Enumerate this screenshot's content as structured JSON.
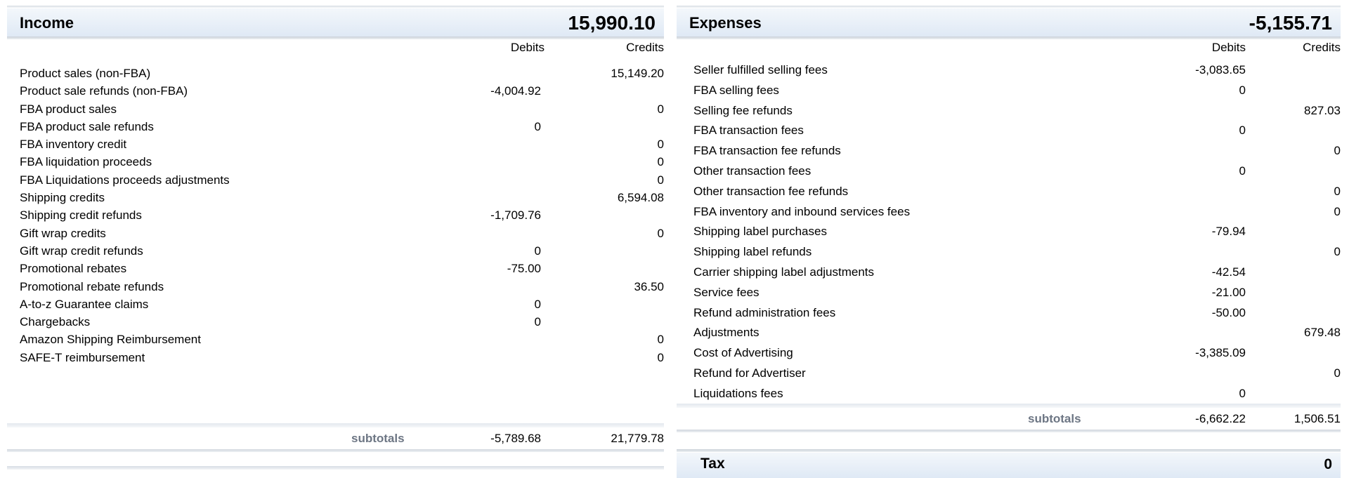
{
  "income": {
    "title": "Income",
    "total": "15,990.10",
    "col_debits": "Debits",
    "col_credits": "Credits",
    "rows": [
      {
        "label": "Product sales (non-FBA)",
        "debit": "",
        "credit": "15,149.20"
      },
      {
        "label": "Product sale refunds (non-FBA)",
        "debit": "-4,004.92",
        "credit": ""
      },
      {
        "label": "FBA product sales",
        "debit": "",
        "credit": "0"
      },
      {
        "label": "FBA product sale refunds",
        "debit": "0",
        "credit": ""
      },
      {
        "label": "FBA inventory credit",
        "debit": "",
        "credit": "0"
      },
      {
        "label": "FBA liquidation proceeds",
        "debit": "",
        "credit": "0"
      },
      {
        "label": "FBA Liquidations proceeds adjustments",
        "debit": "",
        "credit": "0"
      },
      {
        "label": "Shipping credits",
        "debit": "",
        "credit": "6,594.08"
      },
      {
        "label": "Shipping credit refunds",
        "debit": "-1,709.76",
        "credit": ""
      },
      {
        "label": "Gift wrap credits",
        "debit": "",
        "credit": "0"
      },
      {
        "label": "Gift wrap credit refunds",
        "debit": "0",
        "credit": ""
      },
      {
        "label": "Promotional rebates",
        "debit": "-75.00",
        "credit": ""
      },
      {
        "label": "Promotional rebate refunds",
        "debit": "",
        "credit": "36.50"
      },
      {
        "label": "A-to-z Guarantee claims",
        "debit": "0",
        "credit": ""
      },
      {
        "label": "Chargebacks",
        "debit": "0",
        "credit": ""
      },
      {
        "label": "Amazon Shipping Reimbursement",
        "debit": "",
        "credit": "0"
      },
      {
        "label": "SAFE-T reimbursement",
        "debit": "",
        "credit": "0"
      }
    ],
    "subtotals_label": "subtotals",
    "subtotal_debits": "-5,789.68",
    "subtotal_credits": "21,779.78"
  },
  "expenses": {
    "title": "Expenses",
    "total": "-5,155.71",
    "col_debits": "Debits",
    "col_credits": "Credits",
    "rows": [
      {
        "label": "Seller fulfilled selling fees",
        "debit": "-3,083.65",
        "credit": ""
      },
      {
        "label": "FBA selling fees",
        "debit": "0",
        "credit": ""
      },
      {
        "label": "Selling fee refunds",
        "debit": "",
        "credit": "827.03"
      },
      {
        "label": "FBA transaction fees",
        "debit": "0",
        "credit": ""
      },
      {
        "label": "FBA transaction fee refunds",
        "debit": "",
        "credit": "0"
      },
      {
        "label": "Other transaction fees",
        "debit": "0",
        "credit": ""
      },
      {
        "label": "Other transaction fee refunds",
        "debit": "",
        "credit": "0"
      },
      {
        "label": "FBA inventory and inbound services fees",
        "debit": "",
        "credit": "0"
      },
      {
        "label": "Shipping label purchases",
        "debit": "-79.94",
        "credit": ""
      },
      {
        "label": "Shipping label refunds",
        "debit": "",
        "credit": "0"
      },
      {
        "label": "Carrier shipping label adjustments",
        "debit": "-42.54",
        "credit": ""
      },
      {
        "label": "Service fees",
        "debit": "-21.00",
        "credit": ""
      },
      {
        "label": "Refund administration fees",
        "debit": "-50.00",
        "credit": ""
      },
      {
        "label": "Adjustments",
        "debit": "",
        "credit": "679.48"
      },
      {
        "label": "Cost of Advertising",
        "debit": "-3,385.09",
        "credit": ""
      },
      {
        "label": "Refund for Advertiser",
        "debit": "",
        "credit": "0"
      },
      {
        "label": "Liquidations fees",
        "debit": "0",
        "credit": ""
      }
    ],
    "subtotals_label": "subtotals",
    "subtotal_debits": "-6,662.22",
    "subtotal_credits": "1,506.51"
  },
  "tax": {
    "label": "Tax",
    "value": "0"
  }
}
